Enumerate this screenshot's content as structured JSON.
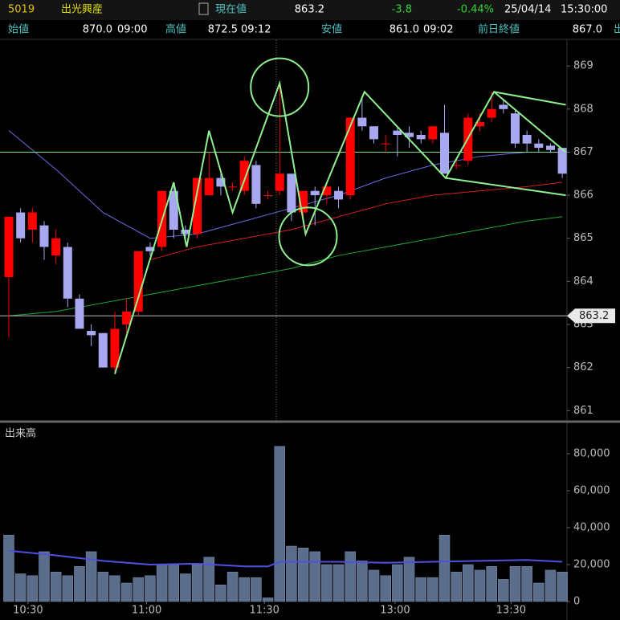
{
  "header": {
    "code": "5019",
    "name": "出光興産",
    "current_label": "現在値",
    "current": "863.2",
    "change": "-3.8",
    "change_pct": "-0.44%",
    "date": "25/04/14",
    "time": "15:30:00",
    "open_label": "始値",
    "open": "870.0",
    "open_time": "09:00",
    "high_label": "高値",
    "high": "872.5",
    "high_time": "09:12",
    "low_label": "安値",
    "low": "861.0",
    "low_time": "09:02",
    "prev_label": "前日終値",
    "prev": "867.0",
    "next_label": "出"
  },
  "chart_data": [
    {
      "type": "candlestick",
      "up_color": "#ff0000",
      "down_color": "#a8a8f0",
      "open": [
        864.1,
        865.6,
        865.2,
        865.3,
        864.6,
        864.8,
        863.6,
        862.85,
        862.8,
        862.0,
        863.0,
        863.3,
        864.8,
        864.8,
        866.1,
        865.2,
        865.1,
        866.0,
        866.4,
        866.2,
        866.1,
        866.7,
        866.0,
        866.1,
        866.5,
        865.6,
        866.1,
        866.0,
        866.1,
        866.0,
        867.8,
        867.6,
        867.2,
        867.5,
        867.45,
        867.4,
        867.3,
        867.45,
        866.7,
        866.8,
        867.6,
        867.8,
        868.1,
        867.9,
        867.4,
        867.2,
        867.15,
        867.1
      ],
      "high": [
        865.5,
        865.7,
        865.7,
        865.4,
        865.2,
        864.9,
        863.7,
        863.0,
        862.8,
        863.3,
        863.6,
        864.7,
        864.9,
        866.1,
        866.3,
        865.3,
        866.4,
        867.0,
        866.5,
        866.3,
        866.9,
        866.8,
        866.1,
        868.6,
        866.5,
        866.1,
        866.2,
        866.3,
        866.2,
        867.8,
        868.3,
        867.6,
        867.4,
        867.6,
        867.6,
        867.5,
        867.6,
        868.1,
        866.8,
        867.9,
        867.9,
        868.4,
        868.2,
        868.0,
        867.5,
        867.3,
        867.2,
        867.1
      ],
      "low": [
        862.7,
        864.9,
        864.9,
        864.5,
        864.4,
        863.4,
        862.9,
        862.5,
        862.0,
        861.9,
        862.8,
        863.2,
        864.6,
        864.7,
        865.0,
        864.9,
        865.0,
        866.0,
        866.0,
        866.1,
        866.0,
        865.7,
        865.9,
        866.0,
        865.4,
        865.5,
        865.3,
        865.8,
        865.7,
        865.9,
        867.5,
        867.2,
        867.0,
        866.9,
        867.1,
        867.2,
        867.2,
        866.5,
        866.6,
        866.7,
        867.5,
        867.7,
        867.9,
        867.1,
        867.0,
        867.0,
        867.0,
        866.4
      ],
      "close": [
        865.5,
        865.0,
        865.6,
        864.8,
        865.0,
        863.6,
        862.9,
        862.75,
        862.0,
        862.9,
        863.3,
        864.7,
        864.7,
        866.1,
        865.2,
        865.1,
        866.4,
        866.4,
        866.2,
        866.2,
        866.8,
        865.8,
        866.0,
        866.5,
        865.6,
        866.1,
        866.0,
        866.2,
        865.9,
        867.8,
        867.6,
        867.3,
        867.2,
        867.4,
        867.35,
        867.3,
        867.6,
        866.5,
        866.7,
        867.8,
        867.7,
        868.0,
        868.0,
        867.2,
        867.2,
        867.1,
        867.05,
        866.5
      ],
      "ylim": [
        860.8,
        869.6
      ],
      "yticks": [
        861,
        862,
        863,
        864,
        865,
        866,
        867,
        868,
        869
      ],
      "xlim": [
        -0.75,
        47.4
      ],
      "xticks": [
        {
          "value": 1.63,
          "label": "10:30"
        },
        {
          "value": 11.7,
          "label": "11:00"
        },
        {
          "value": 21.7,
          "label": "11:30"
        },
        {
          "value": 32.8,
          "label": "13:00"
        },
        {
          "value": 42.65,
          "label": "13:30"
        }
      ],
      "reference_line": 867,
      "reference_color": "#7ee07e",
      "price_line": 863.2,
      "ma_x": [
        0,
        4,
        8,
        12,
        16,
        20,
        24,
        28,
        32,
        36,
        40,
        44,
        47
      ],
      "moving_averages": [
        {
          "color": "#1fa83a",
          "values": [
            863.2,
            863.3,
            863.5,
            863.7,
            863.9,
            864.1,
            864.3,
            864.6,
            864.8,
            865.0,
            865.2,
            865.4,
            865.5
          ]
        },
        {
          "color": "#d42020",
          "values": [
            null,
            null,
            null,
            864.5,
            864.8,
            865.0,
            865.2,
            865.5,
            865.8,
            866.0,
            866.1,
            866.2,
            866.3
          ]
        },
        {
          "color": "#6a6ae0",
          "values": [
            867.5,
            866.6,
            865.6,
            865.0,
            865.1,
            865.4,
            865.7,
            866.0,
            866.4,
            866.7,
            866.9,
            867.0,
            867.0
          ]
        }
      ],
      "zigzag": {
        "color": "#90f090",
        "x": [
          9,
          14,
          15.1,
          17,
          19,
          23,
          25.2,
          30.2,
          37.1,
          41.2,
          47.3
        ],
        "values": [
          861.85,
          866.3,
          864.8,
          867.5,
          865.6,
          868.6,
          865.1,
          868.4,
          866.4,
          868.4,
          867.0
        ]
      },
      "trendlines": [
        {
          "x": [
            41.2,
            47.3
          ],
          "values": [
            868.4,
            868.1
          ]
        },
        {
          "x": [
            37.1,
            47.3
          ],
          "values": [
            866.4,
            866.0
          ]
        }
      ]
    },
    {
      "type": "bar",
      "title": "出来高",
      "color": "#5a6e8c",
      "values": [
        36000,
        15000,
        14000,
        27000,
        16000,
        14000,
        19000,
        27000,
        16000,
        14000,
        10000,
        13000,
        14000,
        20000,
        20000,
        15000,
        20000,
        24000,
        9000,
        16000,
        13000,
        13000,
        2000,
        84000,
        30000,
        29000,
        27000,
        20000,
        20000,
        27000,
        22000,
        17000,
        14000,
        20000,
        24000,
        13000,
        13000,
        36000,
        16000,
        20000,
        17000,
        19000,
        12000,
        19000,
        19000,
        10000,
        17000,
        16000
      ],
      "ylim": [
        0,
        90000
      ],
      "yticks": [
        0,
        {
          "value": 20000,
          "label": "20,000"
        },
        {
          "value": 40000,
          "label": "40,000"
        },
        {
          "value": 60000,
          "label": "60,000"
        },
        {
          "value": 80000,
          "label": "80,000"
        }
      ],
      "ma_color": "#5050e0",
      "ma_x": [
        0,
        4,
        8,
        12,
        16,
        20,
        22,
        23,
        28,
        32,
        36,
        40,
        44,
        47
      ],
      "ma_values": [
        27500,
        25000,
        22000,
        20000,
        20500,
        19000,
        19000,
        21500,
        21500,
        21000,
        21500,
        22000,
        22500,
        21500
      ]
    }
  ]
}
